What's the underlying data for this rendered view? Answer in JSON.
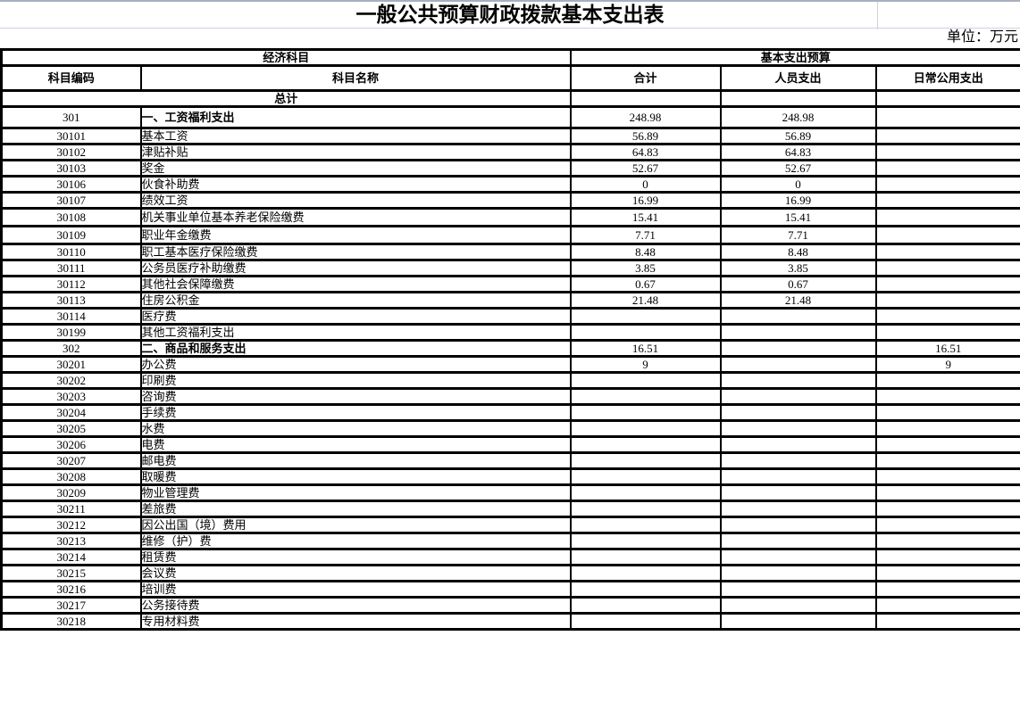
{
  "page": {
    "title": "一般公共预算财政拨款基本支出表",
    "unit_note": "单位：万元"
  },
  "colors": {
    "background": "#ffffff",
    "text": "#000000",
    "table_border": "#000000",
    "top_gridline": "#a9afc0",
    "light_gridline": "#ccd1dc"
  },
  "table": {
    "group_headers": [
      {
        "label": "经济科目",
        "span": 2
      },
      {
        "label": "基本支出预算",
        "span": 3
      }
    ],
    "columns": [
      "科目编码",
      "科目名称",
      "合计",
      "人员支出",
      "日常公用支出"
    ],
    "total_label": "总计",
    "rows": [
      {
        "code": "301",
        "name": "一、工资福利支出",
        "total": "248.98",
        "personnel": "248.98",
        "daily": "",
        "bold": true
      },
      {
        "code": "30101",
        "name": "基本工资",
        "total": "56.89",
        "personnel": "56.89",
        "daily": ""
      },
      {
        "code": "30102",
        "name": "津贴补贴",
        "total": "64.83",
        "personnel": "64.83",
        "daily": ""
      },
      {
        "code": "30103",
        "name": "奖金",
        "total": "52.67",
        "personnel": "52.67",
        "daily": ""
      },
      {
        "code": "30106",
        "name": "伙食补助费",
        "total": "0",
        "personnel": "0",
        "daily": ""
      },
      {
        "code": "30107",
        "name": "绩效工资",
        "total": "16.99",
        "personnel": "16.99",
        "daily": ""
      },
      {
        "code": "30108",
        "name": "机关事业单位基本养老保险缴费",
        "total": "15.41",
        "personnel": "15.41",
        "daily": ""
      },
      {
        "code": "30109",
        "name": "职业年金缴费",
        "total": "7.71",
        "personnel": "7.71",
        "daily": ""
      },
      {
        "code": "30110",
        "name": "职工基本医疗保险缴费",
        "total": "8.48",
        "personnel": "8.48",
        "daily": ""
      },
      {
        "code": "30111",
        "name": "公务员医疗补助缴费",
        "total": "3.85",
        "personnel": "3.85",
        "daily": ""
      },
      {
        "code": "30112",
        "name": "其他社会保障缴费",
        "total": "0.67",
        "personnel": "0.67",
        "daily": ""
      },
      {
        "code": "30113",
        "name": "住房公积金",
        "total": "21.48",
        "personnel": "21.48",
        "daily": ""
      },
      {
        "code": "30114",
        "name": "医疗费",
        "total": "",
        "personnel": "",
        "daily": ""
      },
      {
        "code": "30199",
        "name": "其他工资福利支出",
        "total": "",
        "personnel": "",
        "daily": ""
      },
      {
        "code": "302",
        "name": "二、商品和服务支出",
        "total": "16.51",
        "personnel": "",
        "daily": "16.51",
        "bold": true
      },
      {
        "code": "30201",
        "name": "办公费",
        "total": "9",
        "personnel": "",
        "daily": "9"
      },
      {
        "code": "30202",
        "name": "印刷费",
        "total": "",
        "personnel": "",
        "daily": ""
      },
      {
        "code": "30203",
        "name": "咨询费",
        "total": "",
        "personnel": "",
        "daily": ""
      },
      {
        "code": "30204",
        "name": "手续费",
        "total": "",
        "personnel": "",
        "daily": ""
      },
      {
        "code": "30205",
        "name": "水费",
        "total": "",
        "personnel": "",
        "daily": ""
      },
      {
        "code": "30206",
        "name": "电费",
        "total": "",
        "personnel": "",
        "daily": ""
      },
      {
        "code": "30207",
        "name": "邮电费",
        "total": "",
        "personnel": "",
        "daily": ""
      },
      {
        "code": "30208",
        "name": "取暖费",
        "total": "",
        "personnel": "",
        "daily": ""
      },
      {
        "code": "30209",
        "name": "物业管理费",
        "total": "",
        "personnel": "",
        "daily": ""
      },
      {
        "code": "30211",
        "name": "差旅费",
        "total": "",
        "personnel": "",
        "daily": ""
      },
      {
        "code": "30212",
        "name": "因公出国（境）费用",
        "total": "",
        "personnel": "",
        "daily": ""
      },
      {
        "code": "30213",
        "name": "维修（护）费",
        "total": "",
        "personnel": "",
        "daily": ""
      },
      {
        "code": "30214",
        "name": "租赁费",
        "total": "",
        "personnel": "",
        "daily": ""
      },
      {
        "code": "30215",
        "name": "会议费",
        "total": "",
        "personnel": "",
        "daily": ""
      },
      {
        "code": "30216",
        "name": "培训费",
        "total": "",
        "personnel": "",
        "daily": ""
      },
      {
        "code": "30217",
        "name": "公务接待费",
        "total": "",
        "personnel": "",
        "daily": ""
      },
      {
        "code": "30218",
        "name": "专用材料费",
        "total": "",
        "personnel": "",
        "daily": ""
      }
    ]
  }
}
